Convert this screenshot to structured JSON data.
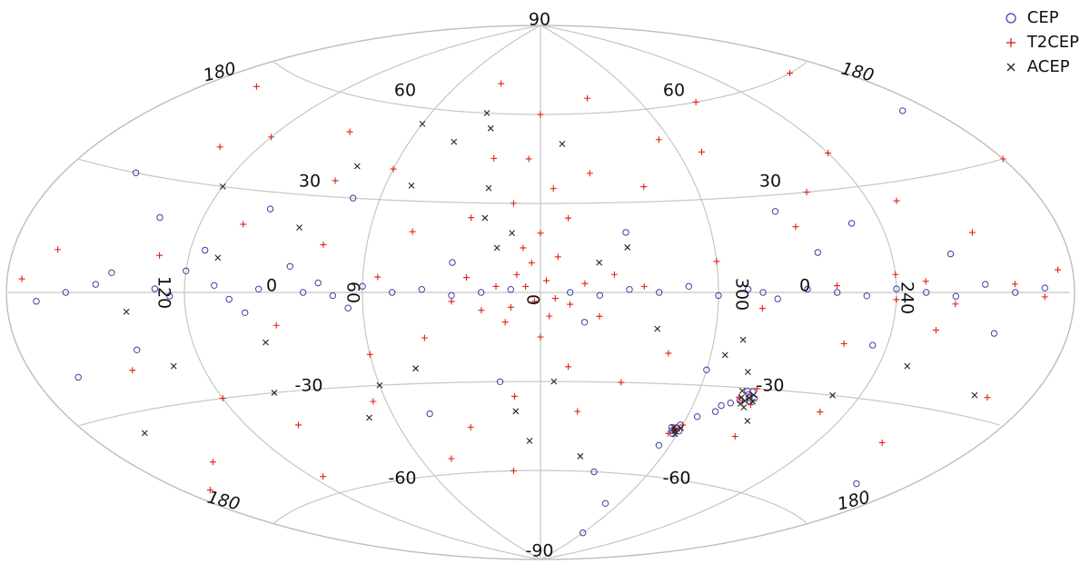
{
  "chart_data": {
    "type": "scatter",
    "projection": "aitoff",
    "coordinates": "galactic",
    "grid": true,
    "legend_position": "top-right",
    "lon_tick_labels": [
      "120",
      "60",
      "0",
      "300",
      "240"
    ],
    "edge_lon_labels": [
      "180",
      "180",
      "180",
      "180"
    ],
    "lat_tick_labels": [
      "90",
      "60",
      "60",
      "30",
      "30",
      "0",
      "0",
      "-30",
      "-30",
      "-60",
      "-60",
      "-90"
    ],
    "lon_tick_values": [
      120,
      60,
      0,
      300,
      240
    ],
    "lat_tick_values": [
      90,
      60,
      60,
      30,
      30,
      0,
      0,
      -30,
      -30,
      -60,
      -60,
      -90
    ],
    "series": [
      {
        "name": "CEP",
        "marker": "circle",
        "color": "#3e3ea8",
        "points": [
          [
            150,
            2
          ],
          [
            160,
            0
          ],
          [
            130,
            1
          ],
          [
            125,
            -1
          ],
          [
            110,
            2
          ],
          [
            105,
            -2
          ],
          [
            95,
            1
          ],
          [
            80,
            0
          ],
          [
            75,
            3
          ],
          [
            70,
            -1
          ],
          [
            60,
            2
          ],
          [
            50,
            0
          ],
          [
            40,
            1
          ],
          [
            30,
            -1
          ],
          [
            20,
            0
          ],
          [
            10,
            1
          ],
          [
            350,
            0
          ],
          [
            340,
            -1
          ],
          [
            330,
            1
          ],
          [
            320,
            0
          ],
          [
            310,
            2
          ],
          [
            300,
            -1
          ],
          [
            290,
            1
          ],
          [
            285,
            0
          ],
          [
            280,
            -2
          ],
          [
            270,
            1
          ],
          [
            260,
            0
          ],
          [
            250,
            -1
          ],
          [
            240,
            1
          ],
          [
            230,
            0
          ],
          [
            220,
            -1
          ],
          [
            210,
            2
          ],
          [
            200,
            0
          ],
          [
            190,
            1
          ],
          [
            170,
            -2
          ],
          [
            145,
            5
          ],
          [
            120,
            6
          ],
          [
            100,
            -6
          ],
          [
            85,
            8
          ],
          [
            65,
            -5
          ],
          [
            135,
            20
          ],
          [
            115,
            12
          ],
          [
            140,
            -15
          ],
          [
            98,
            25
          ],
          [
            70,
            30
          ],
          [
            30,
            10
          ],
          [
            345,
            -10
          ],
          [
            330,
            20
          ],
          [
            300,
            -25
          ],
          [
            280,
            -33
          ],
          [
            281,
            -32
          ],
          [
            279,
            -34
          ],
          [
            282,
            -31
          ],
          [
            278,
            -33
          ],
          [
            283,
            -34
          ],
          [
            280,
            -31
          ],
          [
            302,
            -44
          ],
          [
            303,
            -45
          ],
          [
            301,
            -43
          ],
          [
            304,
            -44
          ],
          [
            300,
            -45
          ],
          [
            302,
            -46
          ],
          [
            296,
            -40
          ],
          [
            290,
            -38
          ],
          [
            289,
            -36
          ],
          [
            286,
            -35
          ],
          [
            305,
            -50
          ],
          [
            310,
            -70
          ],
          [
            250,
            20
          ],
          [
            220,
            10
          ],
          [
            205,
            -10
          ],
          [
            245,
            -15
          ],
          [
            265,
            12
          ],
          [
            275,
            25
          ],
          [
            190,
            45
          ],
          [
            165,
            -20
          ],
          [
            155,
            30
          ],
          [
            45,
            -40
          ],
          [
            15,
            -30
          ],
          [
            330,
            -60
          ],
          [
            300,
            -80
          ],
          [
            200,
            -50
          ]
        ]
      },
      {
        "name": "T2CEP",
        "marker": "plus",
        "color": "#e0201a",
        "points": [
          [
            5,
            2
          ],
          [
            2,
            -3
          ],
          [
            358,
            4
          ],
          [
            355,
            -2
          ],
          [
            10,
            -5
          ],
          [
            8,
            6
          ],
          [
            3,
            10
          ],
          [
            357,
            -8
          ],
          [
            15,
            2
          ],
          [
            345,
            3
          ],
          [
            350,
            -4
          ],
          [
            12,
            -10
          ],
          [
            6,
            15
          ],
          [
            354,
            12
          ],
          [
            20,
            -6
          ],
          [
            340,
            -8
          ],
          [
            25,
            5
          ],
          [
            335,
            6
          ],
          [
            30,
            -3
          ],
          [
            325,
            2
          ],
          [
            0,
            -15
          ],
          [
            0,
            20
          ],
          [
            350,
            25
          ],
          [
            10,
            30
          ],
          [
            20,
            45
          ],
          [
            340,
            40
          ],
          [
            0,
            60
          ],
          [
            30,
            70
          ],
          [
            330,
            65
          ],
          [
            45,
            20
          ],
          [
            60,
            -20
          ],
          [
            75,
            15
          ],
          [
            90,
            -10
          ],
          [
            105,
            20
          ],
          [
            120,
            -30
          ],
          [
            135,
            40
          ],
          [
            150,
            -45
          ],
          [
            165,
            10
          ],
          [
            180,
            30
          ],
          [
            195,
            -25
          ],
          [
            210,
            15
          ],
          [
            225,
            -10
          ],
          [
            240,
            5
          ],
          [
            255,
            -15
          ],
          [
            270,
            20
          ],
          [
            285,
            -5
          ],
          [
            300,
            10
          ],
          [
            315,
            -20
          ],
          [
            320,
            35
          ],
          [
            305,
            50
          ],
          [
            290,
            45
          ],
          [
            270,
            60
          ],
          [
            240,
            40
          ],
          [
            200,
            60
          ],
          [
            160,
            55
          ],
          [
            120,
            45
          ],
          [
            90,
            50
          ],
          [
            60,
            40
          ],
          [
            45,
            -55
          ],
          [
            30,
            -45
          ],
          [
            15,
            -60
          ],
          [
            345,
            -40
          ],
          [
            330,
            -30
          ],
          [
            10,
            -35
          ],
          [
            350,
            -25
          ],
          [
            355,
            35
          ],
          [
            5,
            45
          ],
          [
            25,
            25
          ],
          [
            40,
            -15
          ],
          [
            55,
            5
          ],
          [
            65,
            -35
          ],
          [
            80,
            35
          ],
          [
            100,
            -40
          ],
          [
            115,
            -55
          ],
          [
            130,
            10
          ],
          [
            145,
            -20
          ],
          [
            170,
            -50
          ],
          [
            185,
            5
          ],
          [
            215,
            -40
          ],
          [
            230,
            25
          ],
          [
            250,
            -35
          ],
          [
            260,
            30
          ],
          [
            275,
            -45
          ],
          [
            280,
            -32
          ],
          [
            282,
            -34
          ],
          [
            278,
            -35
          ],
          [
            284,
            -33
          ],
          [
            279,
            -30
          ],
          [
            303,
            -44
          ],
          [
            301,
            -45
          ],
          [
            300,
            -43
          ],
          [
            304,
            -46
          ],
          [
            260,
            2
          ],
          [
            240,
            -2
          ],
          [
            230,
            3
          ],
          [
            220,
            -3
          ],
          [
            200,
            2
          ],
          [
            190,
            -1
          ],
          [
            175,
            3
          ]
        ]
      },
      {
        "name": "ACEP",
        "marker": "cross",
        "color": "#222222",
        "points": [
          [
            30,
            60
          ],
          [
            25,
            55
          ],
          [
            40,
            50
          ],
          [
            60,
            55
          ],
          [
            75,
            40
          ],
          [
            50,
            35
          ],
          [
            20,
            25
          ],
          [
            85,
            20
          ],
          [
            15,
            15
          ],
          [
            330,
            15
          ],
          [
            110,
            10
          ],
          [
            95,
            -15
          ],
          [
            60,
            -30
          ],
          [
            45,
            -25
          ],
          [
            70,
            -40
          ],
          [
            100,
            -30
          ],
          [
            130,
            -20
          ],
          [
            140,
            -5
          ],
          [
            160,
            -35
          ],
          [
            200,
            -25
          ],
          [
            230,
            -20
          ],
          [
            280,
            -33
          ],
          [
            281,
            -34
          ],
          [
            279,
            -32
          ],
          [
            283,
            -33
          ],
          [
            282,
            -35
          ],
          [
            280,
            -36
          ],
          [
            278,
            -34
          ],
          [
            284,
            -31
          ],
          [
            302,
            -45
          ],
          [
            303,
            -44
          ],
          [
            301,
            -46
          ],
          [
            300,
            -44
          ],
          [
            295,
            -20
          ],
          [
            290,
            -15
          ],
          [
            285,
            -25
          ],
          [
            275,
            -40
          ],
          [
            10,
            -40
          ],
          [
            5,
            -50
          ],
          [
            355,
            -30
          ],
          [
            340,
            -55
          ],
          [
            20,
            35
          ],
          [
            350,
            50
          ],
          [
            120,
            30
          ],
          [
            10,
            20
          ],
          [
            340,
            10
          ],
          [
            320,
            -12
          ],
          [
            250,
            -30
          ]
        ]
      }
    ]
  }
}
